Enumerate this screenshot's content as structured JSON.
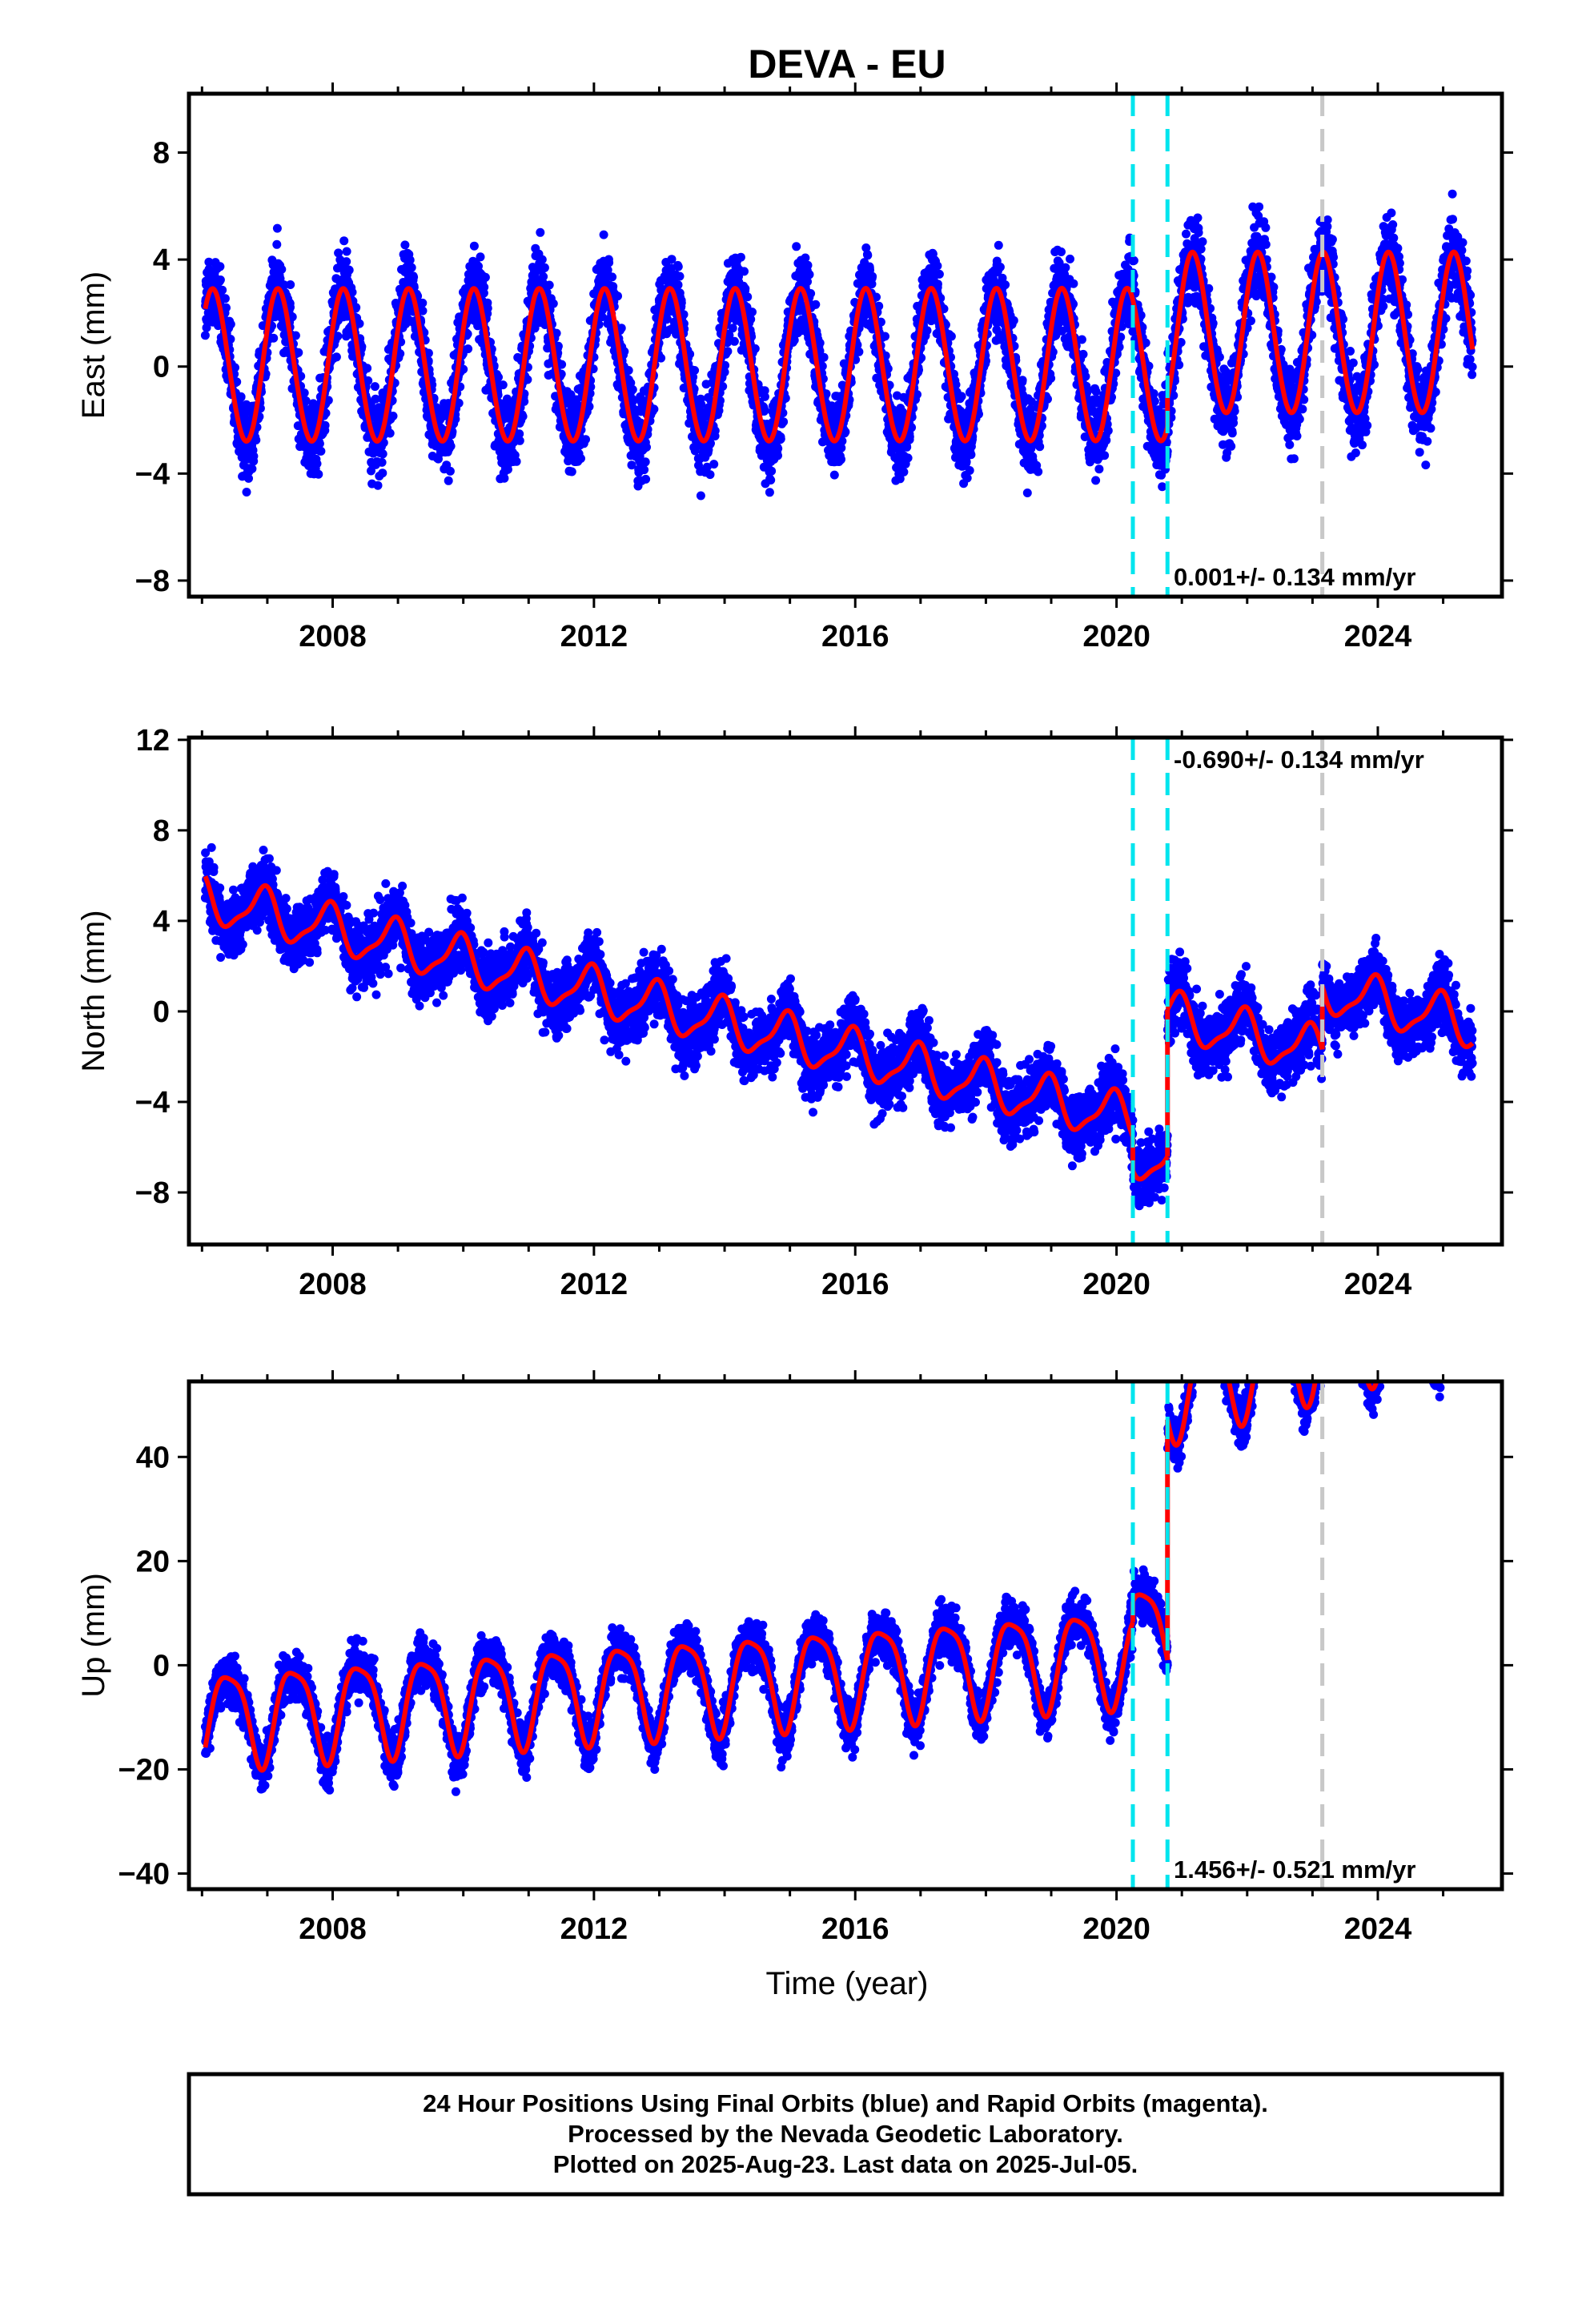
{
  "title": "DEVA - EU",
  "xlabel": "Time (year)",
  "caption": [
    "24 Hour Positions Using Final Orbits (blue) and Rapid Orbits (magenta).",
    "Processed by the Nevada Geodetic Laboratory.",
    "Plotted on 2025-Aug-23. Last data on 2025-Jul-05."
  ],
  "colors": {
    "final_orbits": "#0000ff",
    "model": "#ff0000",
    "equipment_change": "#00e5ee",
    "other_event": "#c8c8c8",
    "frame": "#000000"
  },
  "chart_data": [
    {
      "type": "scatter",
      "component": "east",
      "ylabel": "East (mm)",
      "xlim": [
        2005.8,
        2025.9
      ],
      "ylim": [
        -8.6,
        10.2
      ],
      "xticks": [
        2008,
        2012,
        2016,
        2020,
        2024
      ],
      "yticks": [
        -8,
        -4,
        0,
        4,
        8
      ],
      "ytick_labels": [
        "−8",
        "−4",
        "0",
        "4",
        "8"
      ],
      "rate_label": "0.001+/- 0.134 mm/yr",
      "rate_label_position": "bottom-right",
      "event_lines": [
        {
          "x": 2020.25,
          "style": "dashed",
          "color": "cyan"
        },
        {
          "x": 2020.78,
          "style": "dashed",
          "color": "cyan"
        },
        {
          "x": 2023.15,
          "style": "dashed",
          "color": "gray"
        }
      ],
      "data_span": [
        2006.05,
        2025.45
      ],
      "model_segments": [
        {
          "start": 2006.05,
          "end": 2020.78,
          "offset": 0.0,
          "trend": 0.001,
          "amp1": 2.85,
          "phase1": 0.5,
          "amp2": 0.1
        },
        {
          "start": 2020.78,
          "end": 2025.45,
          "offset": 1.2,
          "trend": 0.001,
          "amp1": 3.0,
          "phase1": 0.5,
          "amp2": 0.1
        }
      ],
      "scatter_noise": 1.35
    },
    {
      "type": "scatter",
      "component": "north",
      "ylabel": "North (mm)",
      "xlim": [
        2005.8,
        2025.9
      ],
      "ylim": [
        -10.3,
        12.1
      ],
      "xticks": [
        2008,
        2012,
        2016,
        2020,
        2024
      ],
      "yticks": [
        -8,
        -4,
        0,
        4,
        8,
        12
      ],
      "ytick_labels": [
        "−8",
        "−4",
        "0",
        "4",
        "8",
        "12"
      ],
      "rate_label": "-0.690+/- 0.134 mm/yr",
      "rate_label_position": "top-right",
      "event_lines": [
        {
          "x": 2020.25,
          "style": "dashed",
          "color": "cyan"
        },
        {
          "x": 2020.78,
          "style": "dashed",
          "color": "cyan"
        },
        {
          "x": 2023.15,
          "style": "dashed",
          "color": "gray"
        }
      ],
      "data_span": [
        2006.05,
        2025.45
      ],
      "model_segments": [
        {
          "start": 2006.05,
          "end": 2020.25,
          "offset": 5.0,
          "trend": -0.69,
          "amp1": 1.0,
          "phase1": 2.0,
          "amp2": 0.3
        },
        {
          "start": 2020.25,
          "end": 2020.78,
          "offset": 3.5,
          "trend": -0.69,
          "amp1": 1.0,
          "phase1": 2.0,
          "amp2": 0.3
        },
        {
          "start": 2020.78,
          "end": 2023.15,
          "offset": 10.0,
          "trend": -0.69,
          "amp1": 1.0,
          "phase1": 2.0,
          "amp2": 0.3
        },
        {
          "start": 2023.15,
          "end": 2025.45,
          "offset": 12.8,
          "trend": -0.69,
          "amp1": 1.0,
          "phase1": 2.0,
          "amp2": 0.3
        }
      ],
      "scatter_noise": 1.3
    },
    {
      "type": "scatter",
      "component": "up",
      "ylabel": "Up (mm)",
      "xlim": [
        2005.8,
        2025.9
      ],
      "ylim": [
        -43.0,
        54.5
      ],
      "xticks": [
        2008,
        2012,
        2016,
        2020,
        2024
      ],
      "yticks": [
        -40,
        -20,
        0,
        20,
        40
      ],
      "ytick_labels": [
        "−40",
        "−20",
        "0",
        "20",
        "40"
      ],
      "rate_label": "1.456+/- 0.521 mm/yr",
      "rate_label_position": "bottom-right",
      "event_lines": [
        {
          "x": 2020.25,
          "style": "dashed",
          "color": "cyan"
        },
        {
          "x": 2020.78,
          "style": "dashed",
          "color": "cyan"
        },
        {
          "x": 2023.15,
          "style": "dashed",
          "color": "gray"
        }
      ],
      "data_span": [
        2006.05,
        2025.45
      ],
      "model_segments": [
        {
          "start": 2006.05,
          "end": 2020.25,
          "offset": -10.0,
          "trend": 0.85,
          "amp1": 9.0,
          "phase1": -1.0,
          "amp2": 2.0
        },
        {
          "start": 2020.25,
          "end": 2020.78,
          "offset": -6.0,
          "trend": 0.85,
          "amp1": 9.0,
          "phase1": -1.0,
          "amp2": 2.0
        },
        {
          "start": 2020.78,
          "end": 2025.45,
          "offset": -0.5,
          "trend": 3.6,
          "amp1": 9.0,
          "phase1": -1.0,
          "amp2": 2.0
        }
      ],
      "scatter_noise": 4.0
    }
  ]
}
